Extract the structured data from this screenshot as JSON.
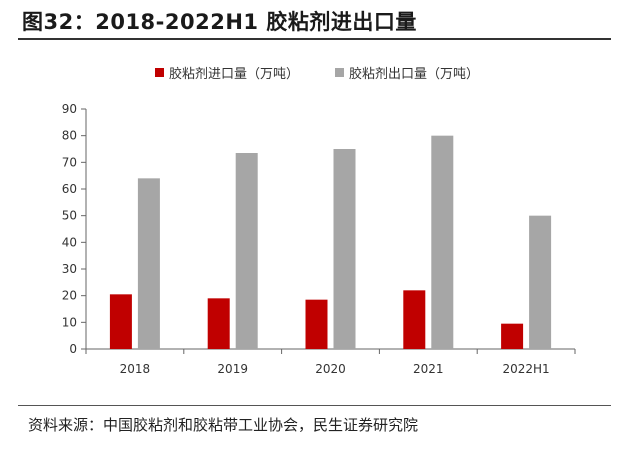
{
  "figure": {
    "title": "图32：2018-2022H1 胶粘剂进出口量",
    "source": "资料来源：中国胶粘剂和胶粘带工业协会，民生证券研究院"
  },
  "chart_data": {
    "type": "bar",
    "categories": [
      "2018",
      "2019",
      "2020",
      "2021",
      "2022H1"
    ],
    "series": [
      {
        "name": "胶粘剂进口量（万吨）",
        "color": "#c00000",
        "values": [
          20.5,
          19,
          18.5,
          22,
          9.5
        ]
      },
      {
        "name": "胶粘剂出口量（万吨）",
        "color": "#a6a6a6",
        "values": [
          64,
          73.5,
          75,
          80,
          50
        ]
      }
    ],
    "ylim": [
      0,
      90
    ],
    "yticks": [
      0,
      10,
      20,
      30,
      40,
      50,
      60,
      70,
      80,
      90
    ],
    "legend": "top-center",
    "grid": false
  }
}
